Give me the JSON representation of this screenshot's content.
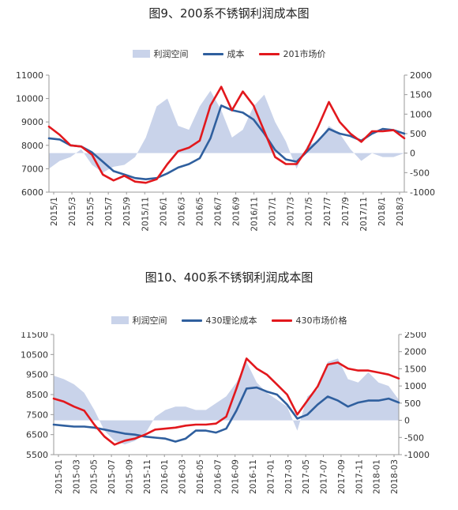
{
  "chart_data": [
    {
      "type": "line",
      "title": "图9、200系不锈钢利润成本图",
      "legend": [
        "利润空间",
        "成本",
        "201市场价"
      ],
      "series": [
        {
          "name": "利润空间",
          "kind": "area",
          "axis": "right",
          "color": "#c9d3ea",
          "values": [
            -400,
            -200,
            -100,
            100,
            -300,
            -500,
            -350,
            -300,
            -100,
            400,
            1200,
            1400,
            700,
            600,
            1200,
            1600,
            1100,
            400,
            600,
            1200,
            1500,
            800,
            300,
            -400,
            200,
            300,
            700,
            500,
            100,
            -200,
            0,
            -100,
            -100,
            0
          ]
        },
        {
          "name": "成本",
          "kind": "line",
          "axis": "left",
          "color": "#2f5f9e",
          "values": [
            8300,
            8250,
            8000,
            7950,
            7700,
            7300,
            6900,
            6750,
            6600,
            6550,
            6600,
            6800,
            7050,
            7200,
            7450,
            8300,
            9700,
            9500,
            9400,
            9100,
            8500,
            7800,
            7400,
            7300,
            7750,
            8200,
            8700,
            8500,
            8400,
            8200,
            8500,
            8700,
            8650,
            8500
          ]
        },
        {
          "name": "201市场价",
          "kind": "line",
          "axis": "left",
          "color": "#e2181d",
          "values": [
            8800,
            8450,
            8000,
            7950,
            7600,
            6750,
            6500,
            6700,
            6450,
            6400,
            6550,
            7200,
            7750,
            7900,
            8200,
            9700,
            10500,
            9500,
            10300,
            9700,
            8600,
            7500,
            7200,
            7200,
            7850,
            8800,
            9850,
            9000,
            8500,
            8150,
            8600,
            8600,
            8650,
            8300
          ]
        }
      ],
      "xlabels": [
        "2015/1",
        "2015/3",
        "2015/5",
        "2015/7",
        "2015/9",
        "2015/11",
        "2016/1",
        "2016/3",
        "2016/5",
        "2016/7",
        "2016/9",
        "2016/11",
        "2017/1",
        "2017/3",
        "2017/5",
        "2017/7",
        "2017/9",
        "2017/11",
        "2018/1",
        "2018/3"
      ],
      "yleft_ticks": [
        "11000",
        "10000",
        "9000",
        "8000",
        "7000",
        "6000"
      ],
      "yleft_lim": [
        6000,
        11000
      ],
      "yright_ticks": [
        "2000",
        "1500",
        "1000",
        "500",
        "0",
        "-500",
        "-1000"
      ],
      "yright_lim": [
        -1000,
        2000
      ],
      "grid": false
    },
    {
      "type": "line",
      "title": "图10、400系不锈钢利润成本图",
      "legend": [
        "利润空间",
        "430理论成本",
        "430市场价格"
      ],
      "series": [
        {
          "name": "利润空间",
          "kind": "area",
          "axis": "right",
          "color": "#c9d3ea",
          "values": [
            1300,
            1200,
            1050,
            800,
            300,
            -300,
            -600,
            -700,
            -600,
            -400,
            100,
            300,
            400,
            400,
            300,
            300,
            500,
            700,
            1100,
            1700,
            1100,
            800,
            600,
            400,
            -300,
            700,
            900,
            1700,
            1800,
            1200,
            1100,
            1400,
            1100,
            1000,
            600
          ]
        },
        {
          "name": "430理论成本",
          "kind": "line",
          "axis": "left",
          "color": "#2f5f9e",
          "values": [
            7000,
            6950,
            6900,
            6900,
            6850,
            6750,
            6650,
            6550,
            6500,
            6400,
            6350,
            6300,
            6150,
            6300,
            6700,
            6700,
            6600,
            6800,
            7700,
            8800,
            8850,
            8650,
            8500,
            8000,
            7300,
            7500,
            8000,
            8400,
            8200,
            7900,
            8100,
            8200,
            8200,
            8300,
            8100
          ]
        },
        {
          "name": "430市场价格",
          "kind": "line",
          "axis": "left",
          "color": "#e2181d",
          "values": [
            8300,
            8150,
            7900,
            7700,
            7000,
            6400,
            6000,
            6200,
            6300,
            6500,
            6750,
            6800,
            6850,
            6950,
            7000,
            7000,
            7050,
            7400,
            8800,
            10300,
            9800,
            9500,
            9000,
            8500,
            7500,
            8200,
            8900,
            10000,
            10100,
            9800,
            9700,
            9700,
            9600,
            9500,
            9300
          ]
        }
      ],
      "xlabels": [
        "2015-01",
        "2015-03",
        "2015-05",
        "2015-07",
        "2015-09",
        "2015-11",
        "2016-01",
        "2016-03",
        "2016-05",
        "2016-07",
        "2016-09",
        "2016-11",
        "2017-01",
        "2017-03",
        "2017-05",
        "2017-07",
        "2017-09",
        "2017-11",
        "2018-01",
        "2018-03"
      ],
      "yleft_ticks": [
        "11500",
        "10500",
        "9500",
        "8500",
        "7500",
        "6500",
        "5500"
      ],
      "yleft_lim": [
        5500,
        11500
      ],
      "yright_ticks": [
        "2500",
        "2000",
        "1500",
        "1000",
        "500",
        "0",
        "-500",
        "-1000"
      ],
      "yright_lim": [
        -1000,
        2500
      ],
      "grid": false
    }
  ]
}
